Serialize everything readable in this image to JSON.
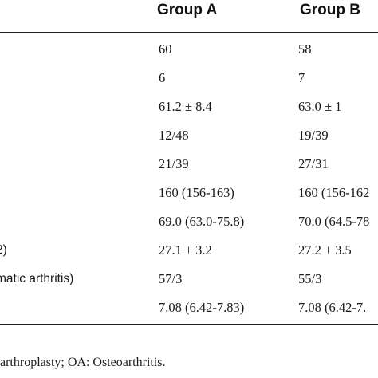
{
  "table": {
    "headers": [
      "Group A",
      "Group B"
    ],
    "rows": [
      {
        "label": "",
        "a": "60",
        "b": "58"
      },
      {
        "label": "",
        "a": "6",
        "b": "7"
      },
      {
        "label": "",
        "a": "61.2 ± 8.4",
        "b": "63.0 ± 1"
      },
      {
        "label": "",
        "a": "12/48",
        "b": "19/39"
      },
      {
        "label": "",
        "a": "21/39",
        "b": "27/31"
      },
      {
        "label": "",
        "a": "160 (156-163)",
        "b": "160 (156-162"
      },
      {
        "label": "",
        "a": "69.0 (63.0-75.8)",
        "b": "70.0 (64.5-78"
      },
      {
        "label": "2)",
        "a": "27.1 ± 3.2",
        "b": "27.2 ± 3.5"
      },
      {
        "label": "matic arthritis)",
        "a": "57/3",
        "b": "55/3"
      },
      {
        "label": "",
        "a": "7.08 (6.42-7.83)",
        "b": "7.08 (6.42-7."
      }
    ]
  },
  "footnote": "arthroplasty; OA: Osteoarthritis."
}
